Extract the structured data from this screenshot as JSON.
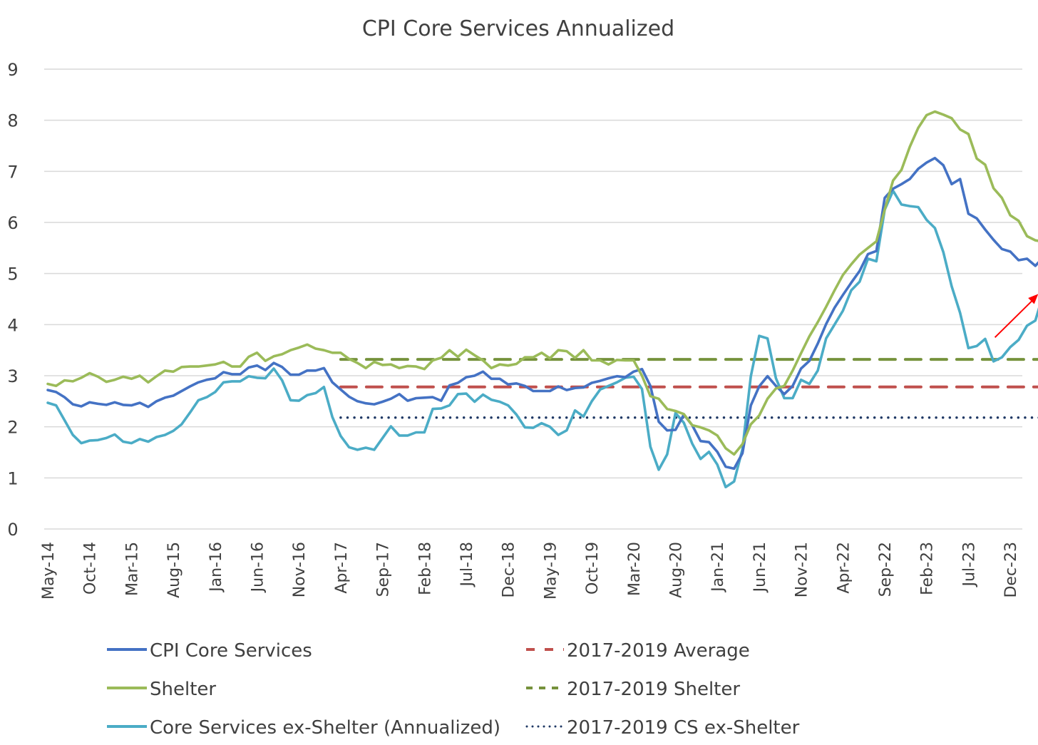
{
  "chart_data": {
    "type": "line",
    "title": "CPI Core Services Annualized",
    "xlabel": "",
    "ylabel": "",
    "ylim": [
      0,
      9
    ],
    "yticks": [
      0,
      1,
      2,
      3,
      4,
      5,
      6,
      7,
      8,
      9
    ],
    "grid": true,
    "legend_position": "bottom",
    "start_month": "May-14",
    "x_tick_labels": [
      "May-14",
      "Oct-14",
      "Mar-15",
      "Aug-15",
      "Jan-16",
      "Jun-16",
      "Nov-16",
      "Apr-17",
      "Sep-17",
      "Feb-18",
      "Jul-18",
      "Dec-18",
      "May-19",
      "Oct-19",
      "Mar-20",
      "Aug-20",
      "Jan-21",
      "Jun-21",
      "Nov-21",
      "Apr-22",
      "Sep-22",
      "Feb-23",
      "Jul-23",
      "Dec-23"
    ],
    "x_tick_every_months": 5,
    "series": [
      {
        "name": "CPI Core Services",
        "color": "#4472c4",
        "style": "solid",
        "values": [
          2.72,
          2.68,
          2.58,
          2.44,
          2.4,
          2.48,
          2.45,
          2.43,
          2.48,
          2.43,
          2.42,
          2.47,
          2.39,
          2.5,
          2.57,
          2.61,
          2.7,
          2.79,
          2.87,
          2.92,
          2.95,
          3.07,
          3.03,
          3.03,
          3.16,
          3.2,
          3.11,
          3.25,
          3.17,
          3.02,
          3.02,
          3.1,
          3.1,
          3.15,
          2.87,
          2.73,
          2.59,
          2.5,
          2.46,
          2.44,
          2.49,
          2.55,
          2.64,
          2.51,
          2.56,
          2.57,
          2.58,
          2.51,
          2.81,
          2.86,
          2.97,
          3.0,
          3.08,
          2.94,
          2.94,
          2.83,
          2.85,
          2.8,
          2.7,
          2.7,
          2.7,
          2.79,
          2.72,
          2.76,
          2.77,
          2.86,
          2.9,
          2.95,
          2.99,
          2.97,
          3.08,
          3.13,
          2.8,
          2.1,
          1.93,
          1.94,
          2.24,
          2.03,
          1.72,
          1.7,
          1.51,
          1.22,
          1.18,
          1.48,
          2.42,
          2.79,
          2.99,
          2.8,
          2.64,
          2.8,
          3.14,
          3.29,
          3.63,
          4.01,
          4.33,
          4.58,
          4.82,
          5.05,
          5.38,
          5.44,
          6.48,
          6.66,
          6.75,
          6.85,
          7.05,
          7.17,
          7.26,
          7.12,
          6.75,
          6.85,
          6.17,
          6.08,
          5.86,
          5.66,
          5.48,
          5.43,
          5.26,
          5.29,
          5.15,
          5.33
        ]
      },
      {
        "name": "Shelter",
        "color": "#9bbb59",
        "style": "solid",
        "values": [
          2.84,
          2.8,
          2.91,
          2.89,
          2.96,
          3.05,
          2.98,
          2.88,
          2.92,
          2.98,
          2.94,
          3.0,
          2.87,
          2.99,
          3.1,
          3.08,
          3.17,
          3.18,
          3.18,
          3.2,
          3.22,
          3.27,
          3.18,
          3.18,
          3.37,
          3.45,
          3.29,
          3.38,
          3.42,
          3.5,
          3.55,
          3.61,
          3.53,
          3.5,
          3.45,
          3.45,
          3.33,
          3.25,
          3.15,
          3.27,
          3.21,
          3.22,
          3.15,
          3.19,
          3.18,
          3.13,
          3.3,
          3.35,
          3.5,
          3.37,
          3.51,
          3.4,
          3.3,
          3.15,
          3.22,
          3.2,
          3.23,
          3.36,
          3.36,
          3.45,
          3.34,
          3.5,
          3.48,
          3.35,
          3.5,
          3.3,
          3.3,
          3.22,
          3.31,
          3.3,
          3.3,
          3.0,
          2.6,
          2.55,
          2.35,
          2.31,
          2.25,
          2.03,
          1.99,
          1.93,
          1.83,
          1.58,
          1.46,
          1.66,
          2.05,
          2.22,
          2.55,
          2.75,
          2.8,
          3.1,
          3.44,
          3.77,
          4.05,
          4.35,
          4.67,
          4.97,
          5.18,
          5.37,
          5.5,
          5.63,
          6.25,
          6.82,
          7.03,
          7.48,
          7.85,
          8.1,
          8.17,
          8.11,
          8.04,
          7.82,
          7.73,
          7.25,
          7.13,
          6.67,
          6.48,
          6.14,
          6.03,
          5.73,
          5.65,
          5.62
        ]
      },
      {
        "name": "Core Services ex-Shelter (Annualized)",
        "color": "#4bacc6",
        "style": "solid",
        "values": [
          2.47,
          2.42,
          2.13,
          1.84,
          1.68,
          1.73,
          1.74,
          1.78,
          1.85,
          1.71,
          1.68,
          1.76,
          1.71,
          1.8,
          1.84,
          1.92,
          2.05,
          2.28,
          2.52,
          2.58,
          2.68,
          2.87,
          2.89,
          2.89,
          2.99,
          2.96,
          2.95,
          3.14,
          2.91,
          2.52,
          2.51,
          2.62,
          2.66,
          2.78,
          2.19,
          1.82,
          1.6,
          1.55,
          1.59,
          1.55,
          1.78,
          2.01,
          1.83,
          1.83,
          1.89,
          1.89,
          2.35,
          2.36,
          2.42,
          2.64,
          2.65,
          2.49,
          2.63,
          2.53,
          2.49,
          2.42,
          2.24,
          1.99,
          1.98,
          2.07,
          2.0,
          1.84,
          1.93,
          2.32,
          2.2,
          2.5,
          2.73,
          2.8,
          2.87,
          2.96,
          2.98,
          2.74,
          1.61,
          1.16,
          1.46,
          2.27,
          2.08,
          1.67,
          1.37,
          1.51,
          1.26,
          0.82,
          0.93,
          1.56,
          2.99,
          3.78,
          3.73,
          2.95,
          2.56,
          2.56,
          2.92,
          2.84,
          3.1,
          3.73,
          4.0,
          4.27,
          4.67,
          4.84,
          5.29,
          5.24,
          6.25,
          6.62,
          6.35,
          6.32,
          6.3,
          6.05,
          5.89,
          5.42,
          4.75,
          4.23,
          3.54,
          3.58,
          3.72,
          3.28,
          3.36,
          3.56,
          3.7,
          3.98,
          4.08,
          4.63
        ]
      },
      {
        "name": "2017-2019 Average",
        "color": "#c0504d",
        "style": "dashed",
        "constant": 2.78,
        "start_month": "Apr-17"
      },
      {
        "name": "2017-2019 Shelter",
        "color": "#76923c",
        "style": "dashed",
        "constant": 3.32,
        "start_month": "Apr-17"
      },
      {
        "name": "2017-2019 CS ex-Shelter",
        "color": "#1f3864",
        "style": "dotted",
        "constant": 2.18,
        "start_month": "Apr-17"
      }
    ],
    "annotations": [
      {
        "type": "arrow",
        "color": "#ff0000",
        "from": {
          "month": "Oct-23",
          "value": 3.75
        },
        "to": {
          "month": "Mar-24",
          "value": 4.6
        }
      }
    ]
  },
  "legend": {
    "items": [
      {
        "label": "CPI Core Services",
        "color": "#4472c4",
        "style": "solid"
      },
      {
        "label": "2017-2019 Average",
        "color": "#c0504d",
        "style": "dashed"
      },
      {
        "label": "Shelter",
        "color": "#9bbb59",
        "style": "solid"
      },
      {
        "label": "2017-2019 Shelter",
        "color": "#76923c",
        "style": "dashed"
      },
      {
        "label": "Core Services ex-Shelter (Annualized)",
        "color": "#4bacc6",
        "style": "solid"
      },
      {
        "label": "2017-2019 CS ex-Shelter",
        "color": "#1f3864",
        "style": "dotted"
      }
    ]
  }
}
